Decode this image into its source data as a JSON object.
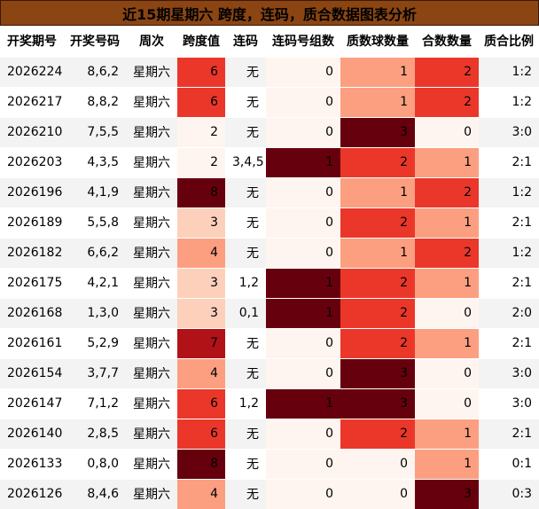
{
  "title": "近15期星期六 跨度，连码，质合数据图表分析",
  "columns": [
    "开奖期号",
    "开奖号码",
    "周次",
    "跨度值",
    "连码",
    "连码号组数",
    "质数球数量",
    "合数数量",
    "质合比例"
  ],
  "heat_colors": {
    "span": {
      "2": "#fff5f0",
      "3": "#fdd0bc",
      "4": "#fc9f81",
      "6": "#eb372a",
      "7": "#b11218",
      "8": "#67000d"
    },
    "count": {
      "0": "#fff5f0",
      "1": "#fc9f81",
      "2": "#eb372a",
      "3": "#67000d"
    },
    "group": {
      "0": "#fff5f0",
      "1": "#67000d"
    }
  },
  "chart_data": {
    "type": "table",
    "title": "近15期星期六 跨度，连码，质合数据图表分析",
    "columns": [
      "开奖期号",
      "开奖号码",
      "周次",
      "跨度值",
      "连码",
      "连码号组数",
      "质数球数量",
      "合数数量",
      "质合比例"
    ],
    "rows": [
      {
        "issue": "2026224",
        "numbers": "8,6,2",
        "weekday": "星期六",
        "span": 6,
        "consec": "无",
        "consec_groups": 0,
        "prime_count": 1,
        "composite_count": 2,
        "ratio": "1:2"
      },
      {
        "issue": "2026217",
        "numbers": "8,8,2",
        "weekday": "星期六",
        "span": 6,
        "consec": "无",
        "consec_groups": 0,
        "prime_count": 1,
        "composite_count": 2,
        "ratio": "1:2"
      },
      {
        "issue": "2026210",
        "numbers": "7,5,5",
        "weekday": "星期六",
        "span": 2,
        "consec": "无",
        "consec_groups": 0,
        "prime_count": 3,
        "composite_count": 0,
        "ratio": "3:0"
      },
      {
        "issue": "2026203",
        "numbers": "4,3,5",
        "weekday": "星期六",
        "span": 2,
        "consec": "3,4,5",
        "consec_groups": 1,
        "prime_count": 2,
        "composite_count": 1,
        "ratio": "2:1"
      },
      {
        "issue": "2026196",
        "numbers": "4,1,9",
        "weekday": "星期六",
        "span": 8,
        "consec": "无",
        "consec_groups": 0,
        "prime_count": 1,
        "composite_count": 2,
        "ratio": "1:2"
      },
      {
        "issue": "2026189",
        "numbers": "5,5,8",
        "weekday": "星期六",
        "span": 3,
        "consec": "无",
        "consec_groups": 0,
        "prime_count": 2,
        "composite_count": 1,
        "ratio": "2:1"
      },
      {
        "issue": "2026182",
        "numbers": "6,6,2",
        "weekday": "星期六",
        "span": 4,
        "consec": "无",
        "consec_groups": 0,
        "prime_count": 1,
        "composite_count": 2,
        "ratio": "1:2"
      },
      {
        "issue": "2026175",
        "numbers": "4,2,1",
        "weekday": "星期六",
        "span": 3,
        "consec": "1,2",
        "consec_groups": 1,
        "prime_count": 2,
        "composite_count": 1,
        "ratio": "2:1"
      },
      {
        "issue": "2026168",
        "numbers": "1,3,0",
        "weekday": "星期六",
        "span": 3,
        "consec": "0,1",
        "consec_groups": 1,
        "prime_count": 2,
        "composite_count": 0,
        "ratio": "2:0"
      },
      {
        "issue": "2026161",
        "numbers": "5,2,9",
        "weekday": "星期六",
        "span": 7,
        "consec": "无",
        "consec_groups": 0,
        "prime_count": 2,
        "composite_count": 1,
        "ratio": "2:1"
      },
      {
        "issue": "2026154",
        "numbers": "3,7,7",
        "weekday": "星期六",
        "span": 4,
        "consec": "无",
        "consec_groups": 0,
        "prime_count": 3,
        "composite_count": 0,
        "ratio": "3:0"
      },
      {
        "issue": "2026147",
        "numbers": "7,1,2",
        "weekday": "星期六",
        "span": 6,
        "consec": "1,2",
        "consec_groups": 1,
        "prime_count": 3,
        "composite_count": 0,
        "ratio": "3:0"
      },
      {
        "issue": "2026140",
        "numbers": "2,8,5",
        "weekday": "星期六",
        "span": 6,
        "consec": "无",
        "consec_groups": 0,
        "prime_count": 2,
        "composite_count": 1,
        "ratio": "2:1"
      },
      {
        "issue": "2026133",
        "numbers": "0,8,0",
        "weekday": "星期六",
        "span": 8,
        "consec": "无",
        "consec_groups": 0,
        "prime_count": 0,
        "composite_count": 1,
        "ratio": "0:1"
      },
      {
        "issue": "2026126",
        "numbers": "8,4,6",
        "weekday": "星期六",
        "span": 4,
        "consec": "无",
        "consec_groups": 0,
        "prime_count": 0,
        "composite_count": 3,
        "ratio": "0:3"
      }
    ]
  }
}
